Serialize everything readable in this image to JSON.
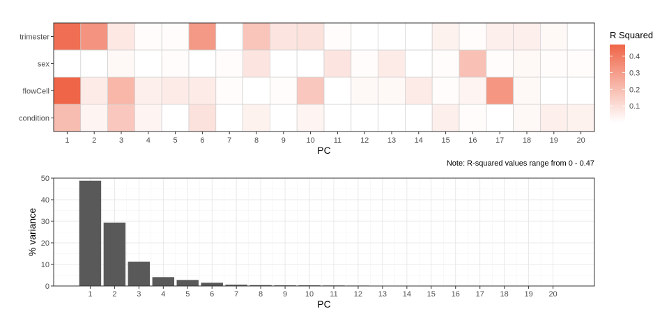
{
  "chart_data": [
    {
      "type": "heatmap",
      "x": [
        "1",
        "2",
        "3",
        "4",
        "5",
        "6",
        "7",
        "8",
        "9",
        "10",
        "11",
        "12",
        "13",
        "14",
        "15",
        "16",
        "17",
        "18",
        "19",
        "20"
      ],
      "y": [
        "trimester",
        "sex",
        "flowCell",
        "condition"
      ],
      "values": [
        [
          0.44,
          0.33,
          0.07,
          0.01,
          0.01,
          0.31,
          0.0,
          0.18,
          0.08,
          0.09,
          0.01,
          0.0,
          0.0,
          0.0,
          0.04,
          0.01,
          0.05,
          0.05,
          0.02,
          0.0
        ],
        [
          0.0,
          0.0,
          0.02,
          0.0,
          0.01,
          0.0,
          0.01,
          0.08,
          0.0,
          0.0,
          0.08,
          0.01,
          0.06,
          0.0,
          0.01,
          0.19,
          0.01,
          0.02,
          0.01,
          0.01
        ],
        [
          0.47,
          0.06,
          0.22,
          0.05,
          0.06,
          0.06,
          0.01,
          0.0,
          0.01,
          0.17,
          0.0,
          0.02,
          0.02,
          0.06,
          0.01,
          0.03,
          0.32,
          0.02,
          0.0,
          0.0
        ],
        [
          0.2,
          0.03,
          0.17,
          0.03,
          0.0,
          0.09,
          0.0,
          0.04,
          0.0,
          0.03,
          0.0,
          0.0,
          0.0,
          0.0,
          0.05,
          0.01,
          0.0,
          0.02,
          0.05,
          0.04
        ]
      ],
      "xlabel": "PC",
      "ylabel": "",
      "legend": {
        "title": "R Squared",
        "ticks": [
          "0.1",
          "0.2",
          "0.3",
          "0.4"
        ],
        "tick_values": [
          0.1,
          0.2,
          0.3,
          0.4
        ],
        "range": [
          0,
          0.47
        ],
        "low_color": "#ffffff",
        "high_color": "#ef6548",
        "placement": "right"
      },
      "note": "Note: R-squared values range from 0 - 0.47"
    },
    {
      "type": "bar",
      "categories": [
        "1",
        "2",
        "3",
        "4",
        "5",
        "6",
        "7",
        "8",
        "9",
        "10",
        "11",
        "12",
        "13",
        "14",
        "15",
        "16",
        "17",
        "18",
        "19",
        "20"
      ],
      "values": [
        48.8,
        29.4,
        11.3,
        4.1,
        2.8,
        1.5,
        0.6,
        0.4,
        0.3,
        0.3,
        0.25,
        0.2,
        0.1,
        0.08,
        0.06,
        0.05,
        0.04,
        0.03,
        0.02,
        0.01
      ],
      "xlabel": "PC",
      "ylabel": "% variance",
      "ylim": [
        0,
        50
      ],
      "yticks": [
        0,
        10,
        20,
        30,
        40,
        50
      ],
      "bar_color": "#595959",
      "grid": true
    }
  ]
}
